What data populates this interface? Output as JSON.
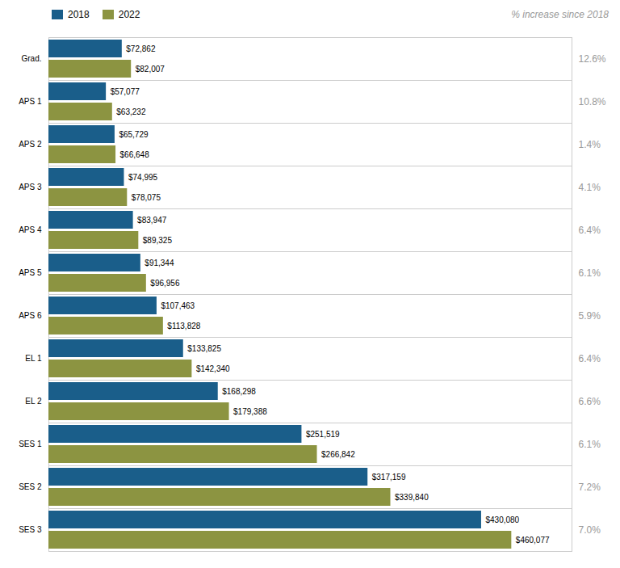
{
  "chart_data": {
    "type": "bar",
    "orientation": "horizontal",
    "categories": [
      "Grad.",
      "APS 1",
      "APS 2",
      "APS 3",
      "APS 4",
      "APS 5",
      "APS 6",
      "EL 1",
      "EL 2",
      "SES 1",
      "SES 2",
      "SES 3"
    ],
    "series": [
      {
        "name": "2018",
        "color": "#1a5e8a",
        "values": [
          72862,
          57077,
          65729,
          74995,
          83947,
          91344,
          107463,
          133825,
          168298,
          251519,
          317159,
          430080
        ],
        "value_labels": [
          "$72,862",
          "$57,077",
          "$65,729",
          "$74,995",
          "$83,947",
          "$91,344",
          "$107,463",
          "$133,825",
          "$168,298",
          "$251,519",
          "$317,159",
          "$430,080"
        ]
      },
      {
        "name": "2022",
        "color": "#8c9441",
        "values": [
          82007,
          63232,
          66648,
          78075,
          89325,
          96956,
          113828,
          142340,
          179388,
          266842,
          339840,
          460077
        ],
        "value_labels": [
          "$82,007",
          "$63,232",
          "$66,648",
          "$78,075",
          "$89,325",
          "$96,956",
          "$113,828",
          "$142,340",
          "$179,388",
          "$266,842",
          "$339,840",
          "$460,077"
        ]
      }
    ],
    "xlim": [
      0,
      520000
    ],
    "tick_labels": "y",
    "data_labels": true,
    "legend": "upper right",
    "pct_change": {
      "title": "% increase since 2018",
      "values": [
        12.6,
        10.8,
        1.4,
        4.1,
        6.4,
        6.1,
        5.9,
        6.4,
        6.6,
        6.1,
        7.2,
        7.0
      ],
      "value_labels": [
        "12.6%",
        "10.8%",
        "1.4%",
        "4.1%",
        "6.4%",
        "6.1%",
        "5.9%",
        "6.4%",
        "6.6%",
        "6.1%",
        "7.2%",
        "7.0%"
      ]
    }
  }
}
